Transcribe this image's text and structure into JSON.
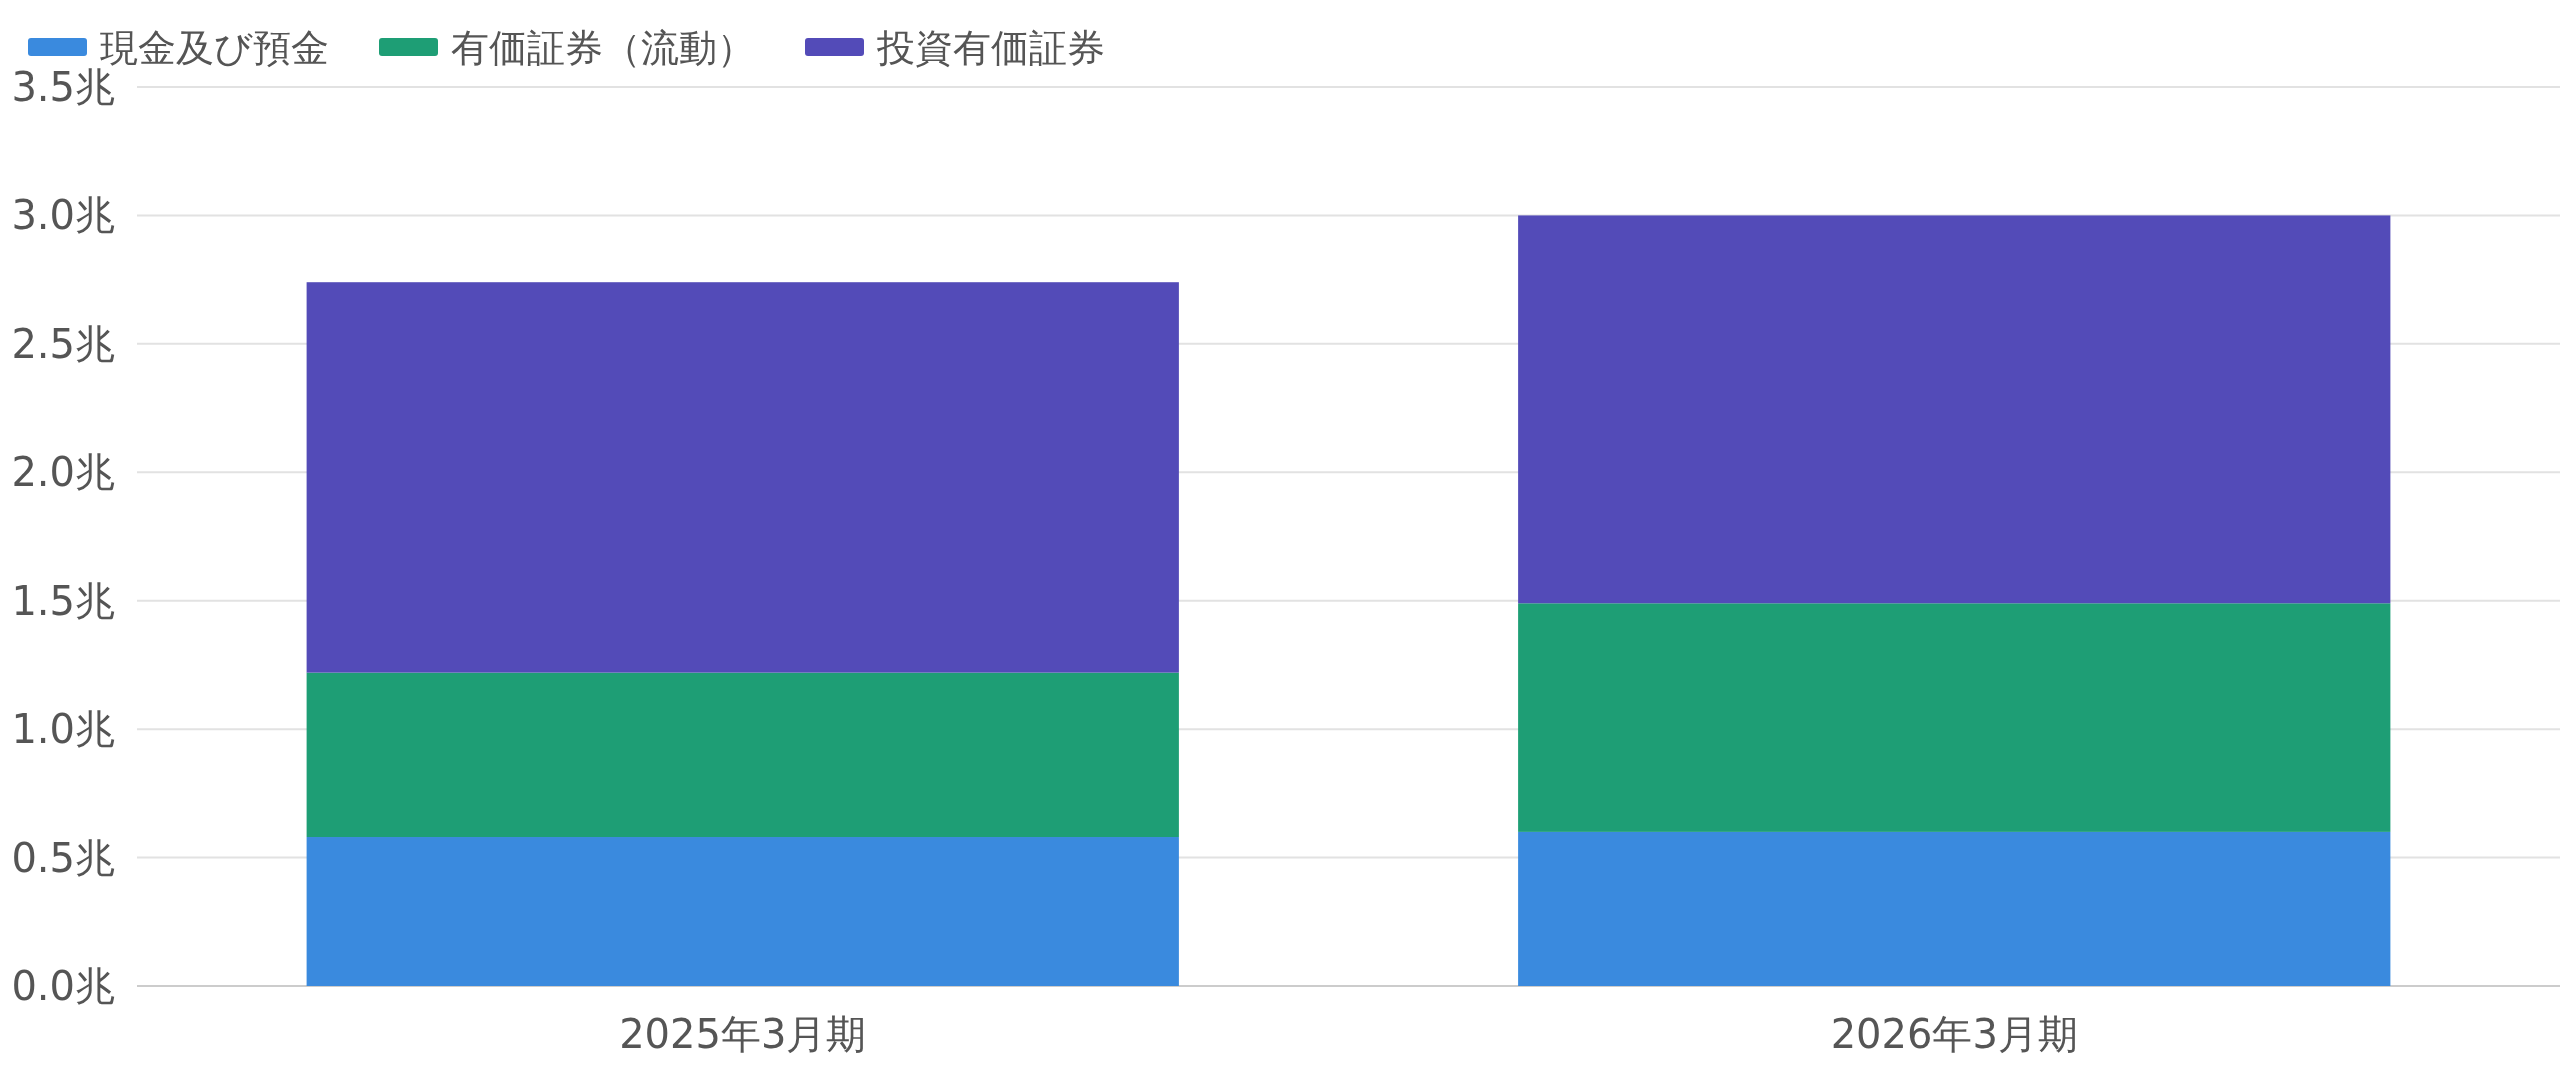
{
  "chart_data": {
    "type": "bar",
    "stacked": true,
    "categories": [
      "2025年3月期",
      "2026年3月期"
    ],
    "series": [
      {
        "name": "現金及び預金",
        "color": "#3a8ade",
        "values": [
          0.58,
          0.6
        ]
      },
      {
        "name": "有価証券（流動）",
        "color": "#1e9e75",
        "values": [
          0.64,
          0.89
        ]
      },
      {
        "name": "投資有価証券",
        "color": "#534bb8",
        "values": [
          1.52,
          1.51
        ]
      }
    ],
    "ylim": [
      0,
      3.5
    ],
    "yticks": [
      {
        "value": 0,
        "label": "0.0兆"
      },
      {
        "value": 0.5,
        "label": "0.5兆"
      },
      {
        "value": 1,
        "label": "1.0兆"
      },
      {
        "value": 1.5,
        "label": "1.5兆"
      },
      {
        "value": 2,
        "label": "2.0兆"
      },
      {
        "value": 2.5,
        "label": "2.5兆"
      },
      {
        "value": 3,
        "label": "3.0兆"
      },
      {
        "value": 3.5,
        "label": "3.5兆"
      }
    ],
    "grid": "y",
    "legend": "top left"
  }
}
